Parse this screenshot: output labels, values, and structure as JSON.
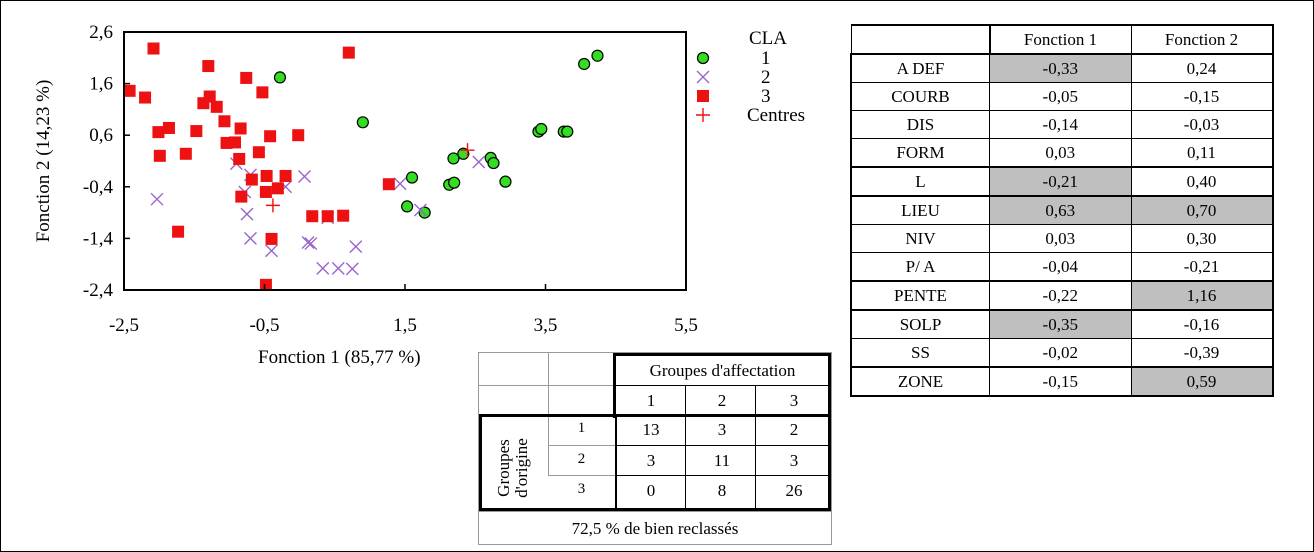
{
  "chart_data": [
    {
      "type": "scatter",
      "xlabel": "Fonction 1 (85,77 %)",
      "ylabel": "Fonction 2 (14,23 %)",
      "xlim": [
        -2.5,
        5.5
      ],
      "ylim": [
        -2.4,
        2.6
      ],
      "xticks": [
        "-2,5",
        "-0,5",
        "1,5",
        "3,5",
        "5,5"
      ],
      "yticks": [
        "2,6",
        "1,6",
        "0,6",
        "-0,4",
        "-1,4",
        "-2,4"
      ],
      "legend_title": "CLA",
      "legend_position": "right",
      "grid": false,
      "series": [
        {
          "name": "1",
          "marker": "circle",
          "color": "#33dd22",
          "points": [
            [
              -0.28,
              1.72
            ],
            [
              0.9,
              0.85
            ],
            [
              1.6,
              -0.22
            ],
            [
              1.78,
              -0.9
            ],
            [
              1.53,
              -0.78
            ],
            [
              2.13,
              -0.36
            ],
            [
              2.2,
              -0.32
            ],
            [
              2.19,
              0.15
            ],
            [
              2.33,
              0.24
            ],
            [
              2.72,
              0.16
            ],
            [
              2.76,
              0.06
            ],
            [
              2.93,
              -0.3
            ],
            [
              3.4,
              0.67
            ],
            [
              3.44,
              0.72
            ],
            [
              3.76,
              0.67
            ],
            [
              3.81,
              0.67
            ],
            [
              4.05,
              1.98
            ],
            [
              4.24,
              2.14
            ]
          ]
        },
        {
          "name": "2",
          "marker": "x",
          "color": "#9966cc",
          "points": [
            [
              -2.03,
              -0.64
            ],
            [
              -0.9,
              0.05
            ],
            [
              -0.7,
              -0.17
            ],
            [
              -0.75,
              -0.93
            ],
            [
              -0.7,
              -1.4
            ],
            [
              -0.4,
              -1.64
            ],
            [
              -0.2,
              -0.4
            ],
            [
              -0.78,
              -0.5
            ],
            [
              0.07,
              -0.2
            ],
            [
              0.12,
              -1.48
            ],
            [
              0.16,
              -1.5
            ],
            [
              0.33,
              -1.98
            ],
            [
              0.55,
              -1.98
            ],
            [
              0.75,
              -1.99
            ],
            [
              0.8,
              -1.56
            ],
            [
              1.43,
              -0.34
            ],
            [
              1.72,
              -0.85
            ],
            [
              2.55,
              0.08
            ],
            [
              0.4,
              -1.0
            ]
          ]
        },
        {
          "name": "3",
          "marker": "square",
          "color": "#ee1111",
          "points": [
            [
              -2.42,
              1.46
            ],
            [
              -2.2,
              1.33
            ],
            [
              -2.08,
              2.28
            ],
            [
              -2.01,
              0.66
            ],
            [
              -1.99,
              0.2
            ],
            [
              -1.86,
              0.74
            ],
            [
              -1.73,
              -1.27
            ],
            [
              -1.62,
              0.24
            ],
            [
              -1.47,
              0.68
            ],
            [
              -1.37,
              1.22
            ],
            [
              -1.3,
              1.94
            ],
            [
              -1.28,
              1.35
            ],
            [
              -1.18,
              1.15
            ],
            [
              -1.07,
              0.87
            ],
            [
              -1.04,
              0.45
            ],
            [
              -0.92,
              0.46
            ],
            [
              -0.84,
              0.73
            ],
            [
              -0.86,
              0.14
            ],
            [
              -0.83,
              -0.59
            ],
            [
              -0.76,
              1.71
            ],
            [
              -0.68,
              -0.26
            ],
            [
              -0.58,
              0.27
            ],
            [
              -0.53,
              1.43
            ],
            [
              -0.47,
              -0.19
            ],
            [
              -0.42,
              0.58
            ],
            [
              -0.4,
              -1.41
            ],
            [
              -0.31,
              -0.43
            ],
            [
              -0.2,
              -0.19
            ],
            [
              -0.02,
              0.6
            ],
            [
              0.18,
              -0.97
            ],
            [
              0.4,
              -0.97
            ],
            [
              0.62,
              -0.96
            ],
            [
              0.7,
              2.2
            ],
            [
              1.27,
              -0.35
            ],
            [
              -0.48,
              -2.3
            ],
            [
              -0.48,
              -0.5
            ]
          ]
        },
        {
          "name": "Centres",
          "marker": "plus",
          "color": "#ee1111",
          "points": [
            [
              -0.38,
              -0.76
            ],
            [
              2.39,
              0.31
            ]
          ]
        }
      ]
    },
    {
      "type": "table",
      "columns": [
        "",
        "Fonction 1",
        "Fonction 2"
      ],
      "rows": [
        {
          "label": "A DEF",
          "f1": "-0,33",
          "f2": "0,24",
          "hl1": true,
          "hl2": false
        },
        {
          "label": "COURB",
          "f1": "-0,05",
          "f2": "-0,15",
          "hl1": false,
          "hl2": false
        },
        {
          "label": "DIS",
          "f1": "-0,14",
          "f2": "-0,03",
          "hl1": false,
          "hl2": false
        },
        {
          "label": "FORM",
          "f1": "0,03",
          "f2": "0,11",
          "hl1": false,
          "hl2": false
        },
        {
          "label": "L",
          "f1": "-0,21",
          "f2": "0,40",
          "hl1": true,
          "hl2": false
        },
        {
          "label": "LIEU",
          "f1": "0,63",
          "f2": "0,70",
          "hl1": true,
          "hl2": true
        },
        {
          "label": "NIV",
          "f1": "0,03",
          "f2": "0,30",
          "hl1": false,
          "hl2": false
        },
        {
          "label": "P/ A",
          "f1": "-0,04",
          "f2": "-0,21",
          "hl1": false,
          "hl2": false
        },
        {
          "label": "PENTE",
          "f1": "-0,22",
          "f2": "1,16",
          "hl1": false,
          "hl2": true
        },
        {
          "label": "SOLP",
          "f1": "-0,35",
          "f2": "-0,16",
          "hl1": true,
          "hl2": false
        },
        {
          "label": "SS",
          "f1": "-0,02",
          "f2": "-0,39",
          "hl1": false,
          "hl2": false
        },
        {
          "label": "ZONE",
          "f1": "-0,15",
          "f2": "0,59",
          "hl1": false,
          "hl2": true
        }
      ]
    },
    {
      "type": "table",
      "header": "Groupes d'affectation",
      "col_labels": [
        "1",
        "2",
        "3"
      ],
      "row_header": "Groupes d'origine",
      "row_labels": [
        "1",
        "2",
        "3"
      ],
      "values": [
        [
          "13",
          "3",
          "2"
        ],
        [
          "3",
          "11",
          "3"
        ],
        [
          "0",
          "8",
          "26"
        ]
      ],
      "footer": "72,5 % de bien reclassés"
    }
  ]
}
